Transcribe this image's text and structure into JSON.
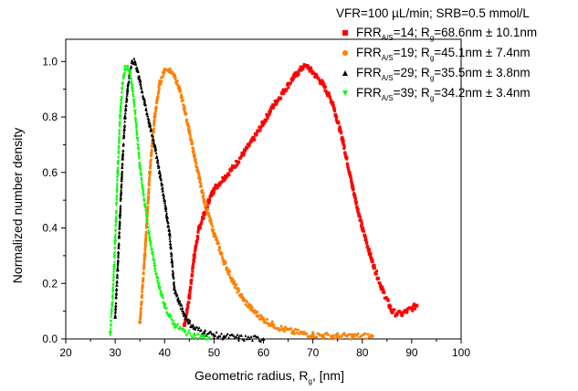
{
  "chart_data": {
    "type": "scatter",
    "title": "",
    "annotation": "VFR=100 µL/min; SRB=0.5 mmol/L",
    "xlabel_main": "Geometric radius, R",
    "xlabel_sub": "g",
    "xlabel_tail": ", [nm]",
    "ylabel": "Normalized number density",
    "xlim": [
      20,
      100
    ],
    "ylim": [
      0,
      1.08
    ],
    "x_ticks": [
      20,
      30,
      40,
      50,
      60,
      70,
      80,
      90,
      100
    ],
    "x_tick_labels": [
      "20",
      "30",
      "40",
      "50",
      "60",
      "70",
      "80",
      "90",
      "100"
    ],
    "y_ticks": [
      0.0,
      0.2,
      0.4,
      0.6,
      0.8,
      1.0
    ],
    "y_tick_labels": [
      "0.0",
      "0.2",
      "0.4",
      "0.6",
      "0.8",
      "1.0"
    ],
    "grid": false,
    "legend_placement": "top-right",
    "series": [
      {
        "legend_main": "FRR",
        "legend_sub": "A/S",
        "legend_mid": "=14; R",
        "legend_sub2": "g",
        "legend_tail": "=68.6nm ± 10.1nm",
        "color": "#ff0000",
        "marker": "square",
        "points": [
          [
            44,
            0.05
          ],
          [
            45,
            0.15
          ],
          [
            46,
            0.3
          ],
          [
            47,
            0.4
          ],
          [
            48,
            0.45
          ],
          [
            49,
            0.5
          ],
          [
            50,
            0.54
          ],
          [
            52,
            0.58
          ],
          [
            54,
            0.62
          ],
          [
            56,
            0.67
          ],
          [
            58,
            0.72
          ],
          [
            60,
            0.78
          ],
          [
            62,
            0.84
          ],
          [
            64,
            0.89
          ],
          [
            66,
            0.94
          ],
          [
            67,
            0.96
          ],
          [
            68,
            0.98
          ],
          [
            69,
            0.98
          ],
          [
            70,
            0.96
          ],
          [
            72,
            0.92
          ],
          [
            74,
            0.85
          ],
          [
            76,
            0.72
          ],
          [
            78,
            0.55
          ],
          [
            80,
            0.4
          ],
          [
            82,
            0.28
          ],
          [
            84,
            0.18
          ],
          [
            86,
            0.1
          ],
          [
            87,
            0.09
          ],
          [
            88,
            0.09
          ],
          [
            89,
            0.1
          ],
          [
            90,
            0.11
          ],
          [
            91,
            0.12
          ]
        ]
      },
      {
        "legend_main": "FRR",
        "legend_sub": "A/S",
        "legend_mid": "=19; R",
        "legend_sub2": "g",
        "legend_tail": "=45.1nm ± 7.4nm",
        "color": "#ff8000",
        "marker": "circle",
        "points": [
          [
            35,
            0.06
          ],
          [
            36,
            0.3
          ],
          [
            37,
            0.6
          ],
          [
            38,
            0.8
          ],
          [
            39,
            0.92
          ],
          [
            40,
            0.97
          ],
          [
            41,
            0.97
          ],
          [
            42,
            0.95
          ],
          [
            43,
            0.9
          ],
          [
            44,
            0.83
          ],
          [
            45,
            0.75
          ],
          [
            46,
            0.66
          ],
          [
            47,
            0.58
          ],
          [
            48,
            0.5
          ],
          [
            50,
            0.38
          ],
          [
            52,
            0.28
          ],
          [
            54,
            0.2
          ],
          [
            56,
            0.14
          ],
          [
            58,
            0.1
          ],
          [
            60,
            0.07
          ],
          [
            62,
            0.05
          ],
          [
            64,
            0.035
          ],
          [
            66,
            0.025
          ],
          [
            68,
            0.02
          ],
          [
            70,
            0.015
          ],
          [
            72,
            0.012
          ],
          [
            75,
            0.01
          ],
          [
            78,
            0.01
          ],
          [
            82,
            0.01
          ]
        ]
      },
      {
        "legend_main": "FRR",
        "legend_sub": "A/S",
        "legend_mid": "=29; R",
        "legend_sub2": "g",
        "legend_tail": "=35.5nm ± 3.8nm",
        "color": "#000000",
        "marker": "triangle",
        "points": [
          [
            30,
            0.08
          ],
          [
            30.5,
            0.25
          ],
          [
            31,
            0.45
          ],
          [
            31.5,
            0.65
          ],
          [
            32,
            0.8
          ],
          [
            32.5,
            0.9
          ],
          [
            33,
            0.97
          ],
          [
            33.5,
            1.0
          ],
          [
            34,
            1.0
          ],
          [
            34.5,
            0.97
          ],
          [
            35,
            0.93
          ],
          [
            36,
            0.85
          ],
          [
            37,
            0.77
          ],
          [
            38,
            0.7
          ],
          [
            39,
            0.6
          ],
          [
            40,
            0.5
          ],
          [
            40.5,
            0.44
          ],
          [
            41,
            0.38
          ],
          [
            41.5,
            0.28
          ],
          [
            42,
            0.18
          ],
          [
            43,
            0.13
          ],
          [
            44,
            0.09
          ],
          [
            45,
            0.06
          ],
          [
            46,
            0.04
          ],
          [
            48,
            0.025
          ],
          [
            50,
            0.015
          ],
          [
            52,
            0.01
          ],
          [
            55,
            0.005
          ],
          [
            60,
            0.0
          ]
        ]
      },
      {
        "legend_main": "FRR",
        "legend_sub": "A/S",
        "legend_mid": "=39; R",
        "legend_sub2": "g",
        "legend_tail": "=34.2nm ± 3.4nm",
        "color": "#00ff00",
        "marker": "triangle-down",
        "points": [
          [
            29,
            0.02
          ],
          [
            29.5,
            0.15
          ],
          [
            30,
            0.35
          ],
          [
            30.5,
            0.6
          ],
          [
            31,
            0.8
          ],
          [
            31.5,
            0.92
          ],
          [
            32,
            0.98
          ],
          [
            32.5,
            0.98
          ],
          [
            33,
            0.96
          ],
          [
            33.5,
            0.9
          ],
          [
            34,
            0.82
          ],
          [
            34.5,
            0.72
          ],
          [
            35,
            0.62
          ],
          [
            36,
            0.48
          ],
          [
            37,
            0.36
          ],
          [
            38,
            0.26
          ],
          [
            39,
            0.18
          ],
          [
            40,
            0.12
          ],
          [
            41,
            0.08
          ],
          [
            42,
            0.05
          ],
          [
            44,
            0.025
          ],
          [
            46,
            0.012
          ],
          [
            48,
            0.005
          ],
          [
            49,
            0.002
          ]
        ]
      }
    ]
  }
}
